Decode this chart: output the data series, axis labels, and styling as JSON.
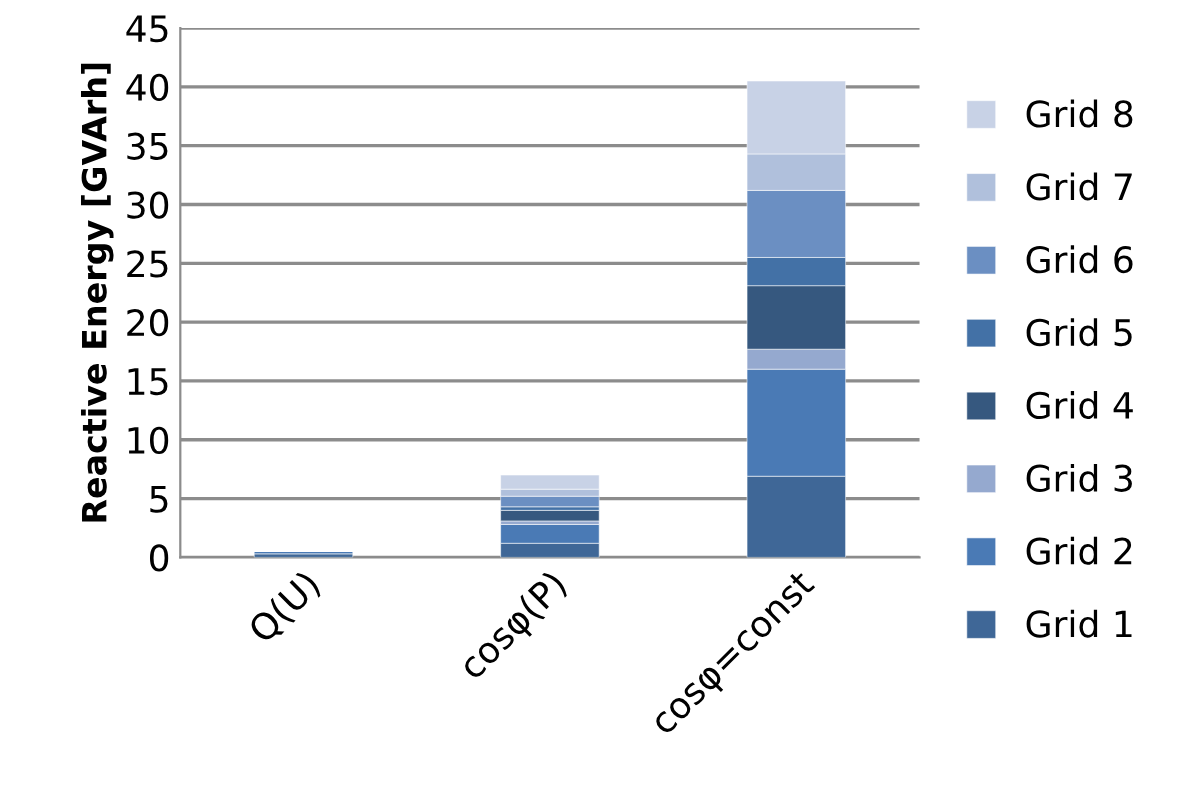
{
  "chart_data": {
    "type": "bar",
    "stacked": true,
    "ylabel": "Reactive Energy [GVArh]",
    "categories": [
      "Q(U)",
      "cosφ(P)",
      "cosφ=const"
    ],
    "series": [
      {
        "name": "Grid 1",
        "color": "#3f6797",
        "values": [
          0.3,
          1.2,
          6.9
        ]
      },
      {
        "name": "Grid 2",
        "color": "#4a7ab5",
        "values": [
          0.2,
          1.6,
          9.1
        ]
      },
      {
        "name": "Grid 3",
        "color": "#95a9cf",
        "values": [
          null,
          0.3,
          1.7
        ]
      },
      {
        "name": "Grid 4",
        "color": "#36587f",
        "values": [
          null,
          0.9,
          5.4
        ]
      },
      {
        "name": "Grid 5",
        "color": "#4371a6",
        "values": [
          null,
          0.3,
          2.4
        ]
      },
      {
        "name": "Grid 6",
        "color": "#6b8fc2",
        "values": [
          null,
          0.9,
          5.7
        ]
      },
      {
        "name": "Grid 7",
        "color": "#b0c0dc",
        "values": [
          null,
          0.6,
          3.1
        ]
      },
      {
        "name": "Grid 8",
        "color": "#c8d2e6",
        "values": [
          null,
          1.2,
          6.2
        ]
      }
    ],
    "ylim": [
      0,
      45
    ],
    "yticks": [
      0,
      5,
      10,
      15,
      20,
      25,
      30,
      35,
      40,
      45
    ],
    "grid": "y",
    "legend": "right"
  }
}
